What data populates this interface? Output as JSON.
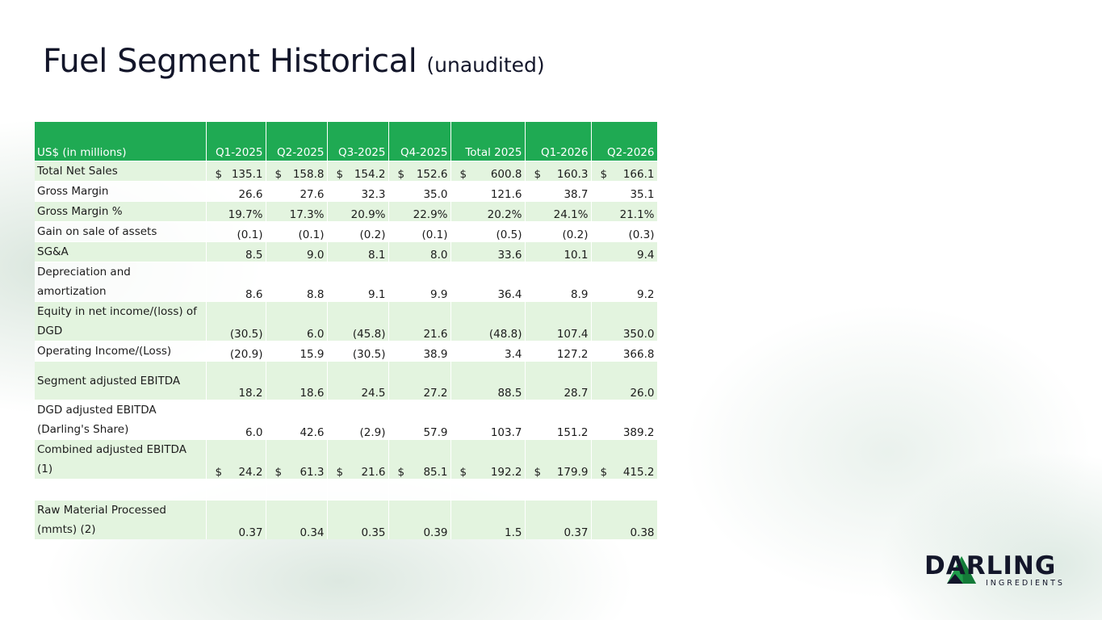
{
  "slide": {
    "title_main": "Fuel Segment Historical",
    "title_sub": "(unaudited)"
  },
  "table": {
    "headers": [
      "US$ (in millions)",
      "Q1-2025",
      "Q2-2025",
      "Q3-2025",
      "Q4-2025",
      "Total 2025",
      "Q1-2026",
      "Q2-2026"
    ],
    "rows": [
      {
        "label": "Total Net Sales",
        "values": [
          "135.1",
          "158.8",
          "154.2",
          "152.6",
          "600.8",
          "160.3",
          "166.1"
        ],
        "dollar": true,
        "shade": true
      },
      {
        "label": "Gross Margin",
        "values": [
          "26.6",
          "27.6",
          "32.3",
          "35.0",
          "121.6",
          "38.7",
          "35.1"
        ],
        "dollar": false,
        "shade": false
      },
      {
        "label": "Gross Margin %",
        "values": [
          "19.7%",
          "17.3%",
          "20.9%",
          "22.9%",
          "20.2%",
          "24.1%",
          "21.1%"
        ],
        "dollar": false,
        "shade": true
      },
      {
        "label": "Gain on sale of assets",
        "values": [
          "(0.1)",
          "(0.1)",
          "(0.2)",
          "(0.1)",
          "(0.5)",
          "(0.2)",
          "(0.3)"
        ],
        "dollar": false,
        "shade": false
      },
      {
        "label": "SG&A",
        "values": [
          "8.5",
          "9.0",
          "8.1",
          "8.0",
          "33.6",
          "10.1",
          "9.4"
        ],
        "dollar": false,
        "shade": true
      },
      {
        "label": "Depreciation and amortization",
        "values": [
          "8.6",
          "8.8",
          "9.1",
          "9.9",
          "36.4",
          "8.9",
          "9.2"
        ],
        "dollar": false,
        "shade": false
      },
      {
        "label": "Equity in net income/(loss) of DGD",
        "values": [
          "(30.5)",
          "6.0",
          "(45.8)",
          "21.6",
          "(48.8)",
          "107.4",
          "350.0"
        ],
        "dollar": false,
        "shade": true
      },
      {
        "label": "Operating Income/(Loss)",
        "values": [
          "(20.9)",
          "15.9",
          "(30.5)",
          "38.9",
          "3.4",
          "127.2",
          "366.8"
        ],
        "dollar": false,
        "shade": false
      },
      {
        "label": "Segment adjusted EBITDA",
        "values": [
          "18.2",
          "18.6",
          "24.5",
          "27.2",
          "88.5",
          "28.7",
          "26.0"
        ],
        "dollar": false,
        "shade": true
      },
      {
        "label": "DGD adjusted EBITDA (Darling's Share)",
        "values": [
          "6.0",
          "42.6",
          "(2.9)",
          "57.9",
          "103.7",
          "151.2",
          "389.2"
        ],
        "dollar": false,
        "shade": false
      },
      {
        "label": "Combined adjusted EBITDA (1)",
        "values": [
          "24.2",
          "61.3",
          "21.6",
          "85.1",
          "192.2",
          "179.9",
          "415.2"
        ],
        "dollar": true,
        "shade": true
      },
      {
        "label": "",
        "values": [
          "",
          "",
          "",
          "",
          "",
          "",
          ""
        ],
        "dollar": false,
        "shade": false
      },
      {
        "label": "Raw Material Processed (mmts) (2)",
        "values": [
          "0.37",
          "0.34",
          "0.35",
          "0.39",
          "1.5",
          "0.37",
          "0.38"
        ],
        "dollar": false,
        "shade": true
      }
    ],
    "dollar_sign": "$"
  },
  "logo": {
    "wordmark": "DARLING",
    "subtext": "INGREDIENTS",
    "icon": "triangle-mountain-icon"
  },
  "colors": {
    "header_green": "#1faa53",
    "row_shade": "#e3f4df",
    "title_navy": "#13162a",
    "logo_green": "#1f9c4a"
  }
}
